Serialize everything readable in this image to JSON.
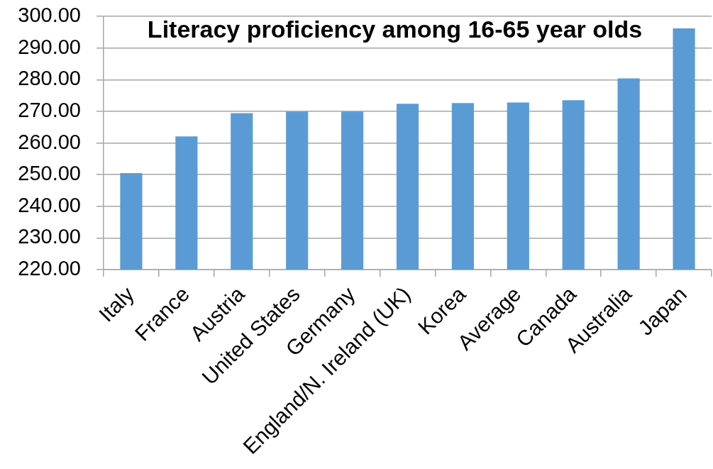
{
  "chart_data": {
    "type": "bar",
    "title": "Literacy proficiency among 16-65 year olds",
    "categories": [
      "Italy",
      "France",
      "Austria",
      "United States",
      "Germany",
      "England/N. Ireland (UK)",
      "Korea",
      "Average",
      "Canada",
      "Australia",
      "Japan"
    ],
    "values": [
      250.5,
      262.1,
      269.4,
      269.9,
      269.9,
      272.4,
      272.6,
      272.8,
      273.5,
      280.4,
      296.2
    ],
    "color": "#5b9bd5",
    "ylim": [
      220,
      300
    ],
    "yticks": [
      {
        "value": 220,
        "label": "220.00"
      },
      {
        "value": 230,
        "label": "230.00"
      },
      {
        "value": 240,
        "label": "240.00"
      },
      {
        "value": 250,
        "label": "250.00"
      },
      {
        "value": 260,
        "label": "260.00"
      },
      {
        "value": 270,
        "label": "270.00"
      },
      {
        "value": 280,
        "label": "280.00"
      },
      {
        "value": 290,
        "label": "290.00"
      },
      {
        "value": 300,
        "label": "300.00"
      }
    ],
    "grid": "y"
  }
}
